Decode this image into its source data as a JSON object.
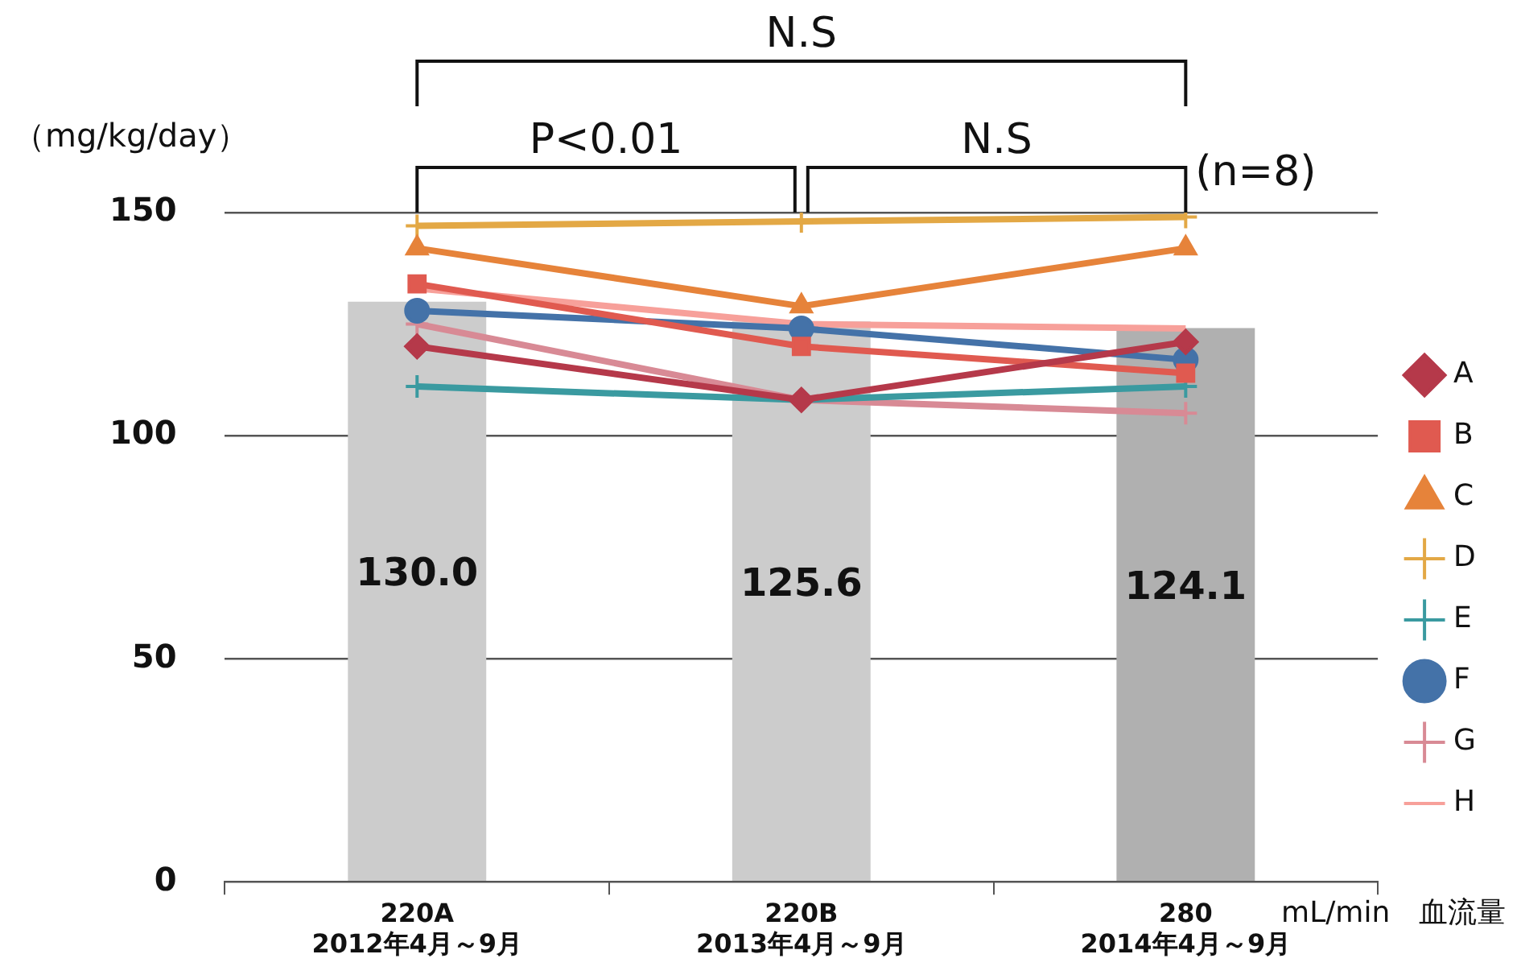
{
  "chart_data": {
    "type": "line",
    "ylabel": "（mg/kg/day）",
    "xlabel": "mL/min　血流量",
    "categories": [
      "220A\n2012年4月～9月",
      "220B\n2013年4月～9月",
      "280\n2014年4月～9月"
    ],
    "ylim": [
      0,
      150
    ],
    "yticks": [
      0,
      50,
      100,
      150
    ],
    "grid": "y",
    "legend": "right",
    "series": [
      {
        "type": "bar",
        "colors": [
          "#cccccc",
          "#cccccc",
          "#b0b0b0"
        ],
        "values": [
          130.0,
          125.6,
          124.1
        ],
        "value_labels": [
          "130.0",
          "125.6",
          "124.1"
        ]
      },
      {
        "name": "A",
        "color": "#b5394a",
        "marker": "diamond",
        "values": [
          120,
          108,
          121
        ]
      },
      {
        "name": "B",
        "color": "#e05a50",
        "marker": "square",
        "values": [
          134,
          120,
          114
        ]
      },
      {
        "name": "C",
        "color": "#e6833a",
        "marker": "triangle",
        "values": [
          142,
          129,
          142
        ]
      },
      {
        "name": "D",
        "color": "#e3a845",
        "marker": "cross",
        "values": [
          147,
          148,
          149
        ]
      },
      {
        "name": "E",
        "color": "#3a9aa0",
        "marker": "cross",
        "values": [
          111,
          108,
          111
        ]
      },
      {
        "name": "F",
        "color": "#4472a8",
        "marker": "circle",
        "values": [
          128,
          124,
          117
        ]
      },
      {
        "name": "G",
        "color": "#d88a95",
        "marker": "cross",
        "values": [
          125,
          108,
          105
        ]
      },
      {
        "name": "H",
        "color": "#f7a09a",
        "marker": "none",
        "values": [
          133,
          125,
          124
        ]
      }
    ],
    "annotations": [
      "N.S",
      "P<0.01",
      "N.S",
      "(n=8)"
    ]
  }
}
